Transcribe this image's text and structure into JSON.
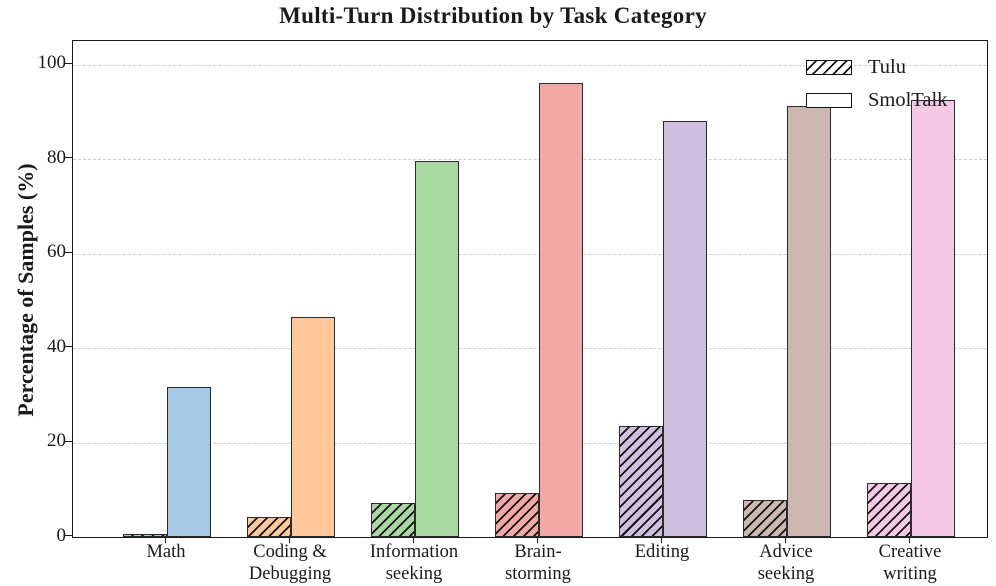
{
  "chart_data": {
    "type": "bar",
    "title": "Multi-Turn Distribution by Task Category",
    "xlabel": "",
    "ylabel": "Percentage of Samples (%)",
    "categories": [
      "Math",
      "Coding & Debugging",
      "Information seeking",
      "Brain-storming",
      "Editing",
      "Advice seeking",
      "Creative writing"
    ],
    "category_label_lines": [
      [
        "Math"
      ],
      [
        "Coding &",
        "Debugging"
      ],
      [
        "Information",
        "seeking"
      ],
      [
        "Brain-",
        "storming"
      ],
      [
        "Editing"
      ],
      [
        "Advice",
        "seeking"
      ],
      [
        "Creative",
        "writing"
      ]
    ],
    "series": [
      {
        "name": "Tulu",
        "style": "hatched",
        "values": [
          0.6,
          4.3,
          7.2,
          9.4,
          23.5,
          7.8,
          11.5
        ]
      },
      {
        "name": "SmolTalk",
        "style": "solid",
        "values": [
          31.8,
          46.5,
          79.7,
          96.1,
          88.0,
          91.2,
          92.6
        ]
      }
    ],
    "category_colors": [
      "#a5c9e4",
      "#fec89a",
      "#a9d7a2",
      "#f2a8a6",
      "#cfc0df",
      "#ccb8b1",
      "#f5c9e5"
    ],
    "yticks": [
      0,
      20,
      40,
      60,
      80,
      100
    ],
    "ylim": [
      0,
      105
    ],
    "grid": "horizontal dashed",
    "legend_position": "upper right",
    "colors": {
      "bar_edge": "#2b2b2b",
      "grid": "#cdcdcd",
      "text": "#1a1a1a",
      "hatch": "#111111",
      "background": "#ffffff"
    }
  }
}
